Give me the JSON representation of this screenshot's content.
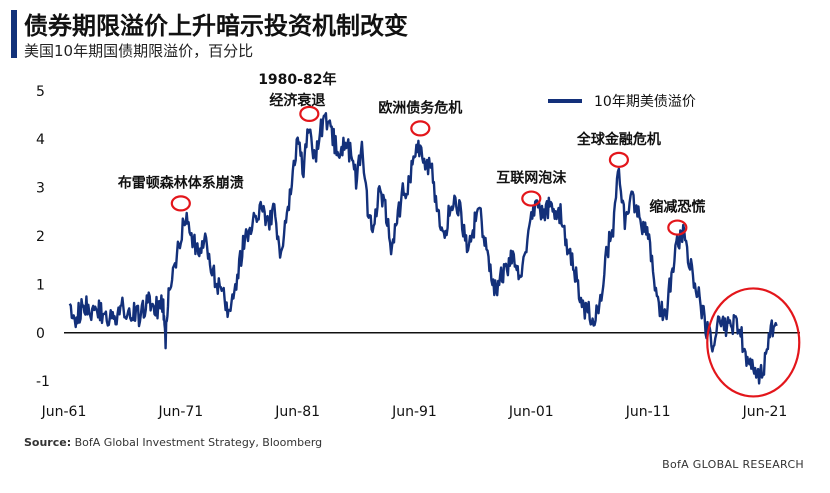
{
  "chart_data": {
    "type": "line",
    "title": "债券期限溢价上升暗示投资机制改变",
    "subtitle": "美国10年期国债期限溢价，百分比",
    "series": [
      {
        "name": "10年期美债溢价",
        "color": "#13307a",
        "points": [
          [
            1961.5,
            0.6
          ],
          [
            1962.0,
            0.3
          ],
          [
            1962.5,
            0.5
          ],
          [
            1963.0,
            0.6
          ],
          [
            1963.5,
            0.4
          ],
          [
            1964.0,
            0.5
          ],
          [
            1964.5,
            0.3
          ],
          [
            1965.0,
            0.4
          ],
          [
            1965.5,
            0.3
          ],
          [
            1966.0,
            0.6
          ],
          [
            1966.5,
            0.4
          ],
          [
            1967.0,
            0.5
          ],
          [
            1967.5,
            0.3
          ],
          [
            1968.0,
            0.6
          ],
          [
            1968.5,
            0.7
          ],
          [
            1969.0,
            0.5
          ],
          [
            1969.5,
            0.6
          ],
          [
            1969.7,
            -0.1
          ],
          [
            1970.0,
            0.9
          ],
          [
            1970.5,
            1.4
          ],
          [
            1971.0,
            2.0
          ],
          [
            1971.5,
            2.5
          ],
          [
            1972.0,
            1.9
          ],
          [
            1972.5,
            1.7
          ],
          [
            1973.0,
            2.0
          ],
          [
            1973.5,
            1.5
          ],
          [
            1974.0,
            1.1
          ],
          [
            1974.5,
            0.8
          ],
          [
            1975.0,
            0.5
          ],
          [
            1975.5,
            0.7
          ],
          [
            1976.0,
            1.4
          ],
          [
            1976.5,
            2.0
          ],
          [
            1977.0,
            2.1
          ],
          [
            1977.5,
            2.4
          ],
          [
            1978.0,
            2.7
          ],
          [
            1978.5,
            2.2
          ],
          [
            1979.0,
            2.5
          ],
          [
            1979.5,
            1.7
          ],
          [
            1980.0,
            2.3
          ],
          [
            1980.5,
            3.0
          ],
          [
            1981.0,
            4.0
          ],
          [
            1981.5,
            3.4
          ],
          [
            1982.0,
            4.3
          ],
          [
            1982.5,
            3.5
          ],
          [
            1983.0,
            4.2
          ],
          [
            1983.5,
            4.4
          ],
          [
            1984.0,
            4.1
          ],
          [
            1984.5,
            3.6
          ],
          [
            1985.0,
            4.0
          ],
          [
            1985.5,
            3.7
          ],
          [
            1986.0,
            3.2
          ],
          [
            1986.5,
            3.8
          ],
          [
            1987.0,
            2.6
          ],
          [
            1987.5,
            2.2
          ],
          [
            1988.0,
            3.0
          ],
          [
            1988.5,
            2.6
          ],
          [
            1989.0,
            1.7
          ],
          [
            1989.5,
            2.3
          ],
          [
            1990.0,
            2.9
          ],
          [
            1990.5,
            3.1
          ],
          [
            1991.0,
            3.6
          ],
          [
            1991.5,
            3.9
          ],
          [
            1992.0,
            3.5
          ],
          [
            1992.5,
            3.3
          ],
          [
            1993.0,
            2.4
          ],
          [
            1993.5,
            1.9
          ],
          [
            1994.0,
            2.5
          ],
          [
            1994.5,
            2.8
          ],
          [
            1995.0,
            2.4
          ],
          [
            1995.5,
            1.7
          ],
          [
            1996.0,
            2.1
          ],
          [
            1996.5,
            2.6
          ],
          [
            1997.0,
            1.9
          ],
          [
            1997.5,
            1.4
          ],
          [
            1998.0,
            0.8
          ],
          [
            1998.5,
            1.2
          ],
          [
            1999.0,
            1.4
          ],
          [
            1999.5,
            1.6
          ],
          [
            2000.0,
            1.1
          ],
          [
            2000.5,
            1.6
          ],
          [
            2001.0,
            2.3
          ],
          [
            2001.5,
            2.7
          ],
          [
            2002.0,
            2.5
          ],
          [
            2002.5,
            2.6
          ],
          [
            2003.0,
            2.3
          ],
          [
            2003.5,
            2.5
          ],
          [
            2004.0,
            1.9
          ],
          [
            2004.5,
            1.5
          ],
          [
            2005.0,
            1.0
          ],
          [
            2005.5,
            0.5
          ],
          [
            2006.0,
            0.4
          ],
          [
            2006.5,
            0.3
          ],
          [
            2007.0,
            0.8
          ],
          [
            2007.5,
            1.7
          ],
          [
            2008.0,
            2.2
          ],
          [
            2008.5,
            3.4
          ],
          [
            2009.0,
            2.3
          ],
          [
            2009.5,
            2.8
          ],
          [
            2010.0,
            2.6
          ],
          [
            2010.5,
            2.2
          ],
          [
            2011.0,
            2.1
          ],
          [
            2011.5,
            1.1
          ],
          [
            2012.0,
            0.5
          ],
          [
            2012.5,
            0.3
          ],
          [
            2013.0,
            1.2
          ],
          [
            2013.5,
            1.9
          ],
          [
            2014.0,
            2.1
          ],
          [
            2014.5,
            1.5
          ],
          [
            2015.0,
            1.0
          ],
          [
            2015.5,
            0.6
          ],
          [
            2016.0,
            0.1
          ],
          [
            2016.5,
            -0.2
          ],
          [
            2017.0,
            0.2
          ],
          [
            2017.5,
            0.1
          ],
          [
            2018.0,
            0.1
          ],
          [
            2018.5,
            0.2
          ],
          [
            2019.0,
            -0.1
          ],
          [
            2019.5,
            -0.6
          ],
          [
            2020.0,
            -0.8
          ],
          [
            2020.5,
            -0.9
          ],
          [
            2021.0,
            -0.6
          ],
          [
            2021.5,
            0.0
          ],
          [
            2022.0,
            0.3
          ]
        ]
      }
    ],
    "x_ticks": [
      {
        "x": 1961,
        "label": "Jun-61"
      },
      {
        "x": 1971,
        "label": "Jun-71"
      },
      {
        "x": 1981,
        "label": "Jun-81"
      },
      {
        "x": 1991,
        "label": "Jun-91"
      },
      {
        "x": 2001,
        "label": "Jun-01"
      },
      {
        "x": 2011,
        "label": "Jun-11"
      },
      {
        "x": 2021,
        "label": "Jun-21"
      }
    ],
    "y_ticks": [
      5,
      4,
      3,
      2,
      1,
      0,
      -1
    ],
    "ylim": [
      -1.1,
      5.1
    ],
    "xlim": [
      1961,
      2024
    ],
    "reference_line": 0,
    "legend_position": "top-right",
    "annotations": [
      {
        "label": "布雷顿森林体系崩溃",
        "x": 1971.0,
        "y": 2.55
      },
      {
        "label": "1980-82年",
        "label2": "经济衰退",
        "x": 1982.0,
        "y": 4.4
      },
      {
        "label": "欧洲债务危机",
        "x": 1991.5,
        "y": 4.1
      },
      {
        "label": "互联网泡沫",
        "x": 2001.0,
        "y": 2.65
      },
      {
        "label": "全球金融危机",
        "x": 2008.5,
        "y": 3.45
      },
      {
        "label": "缩减恐慌",
        "x": 2013.5,
        "y": 2.05
      }
    ],
    "highlight_ellipse": {
      "x": 2020.0,
      "y": -0.2
    }
  },
  "source_label": "Source:",
  "source_text": "BofA Global Investment Strategy, Bloomberg",
  "brand": "BofA GLOBAL RESEARCH"
}
